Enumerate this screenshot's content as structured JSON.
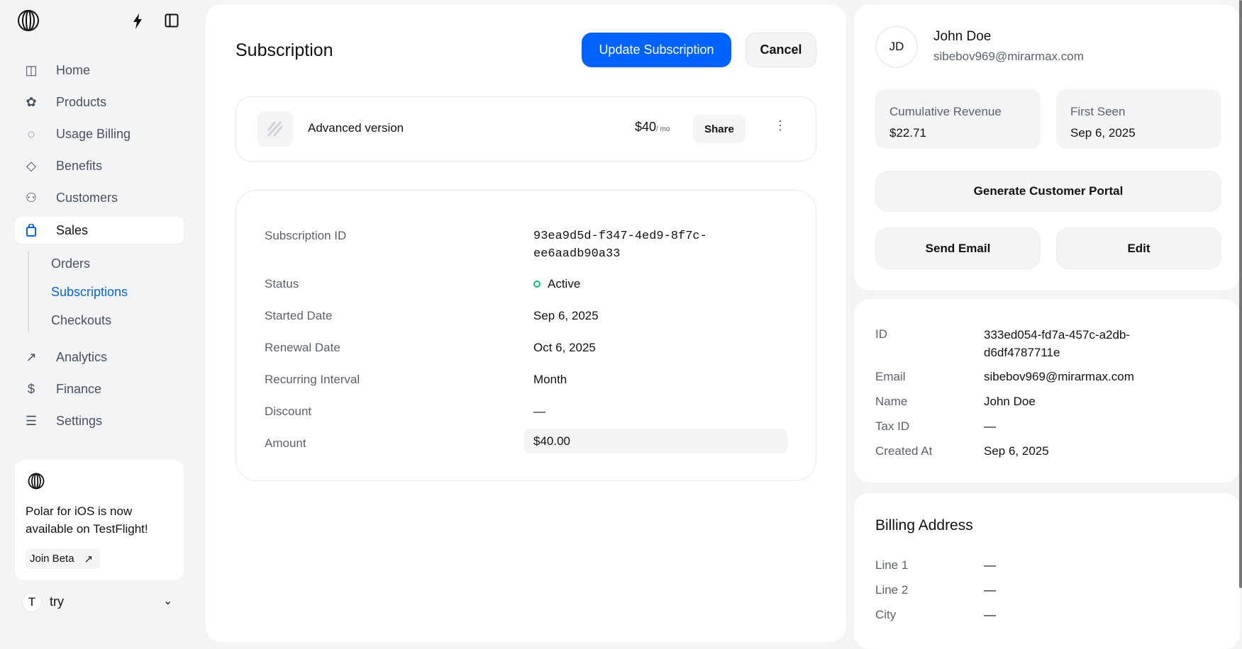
{
  "sidebar": {
    "items": [
      {
        "label": "Home",
        "icon": "home-grid-icon"
      },
      {
        "label": "Products",
        "icon": "products-icon"
      },
      {
        "label": "Usage Billing",
        "icon": "usage-billing-icon"
      },
      {
        "label": "Benefits",
        "icon": "diamond-icon"
      },
      {
        "label": "Customers",
        "icon": "customers-icon"
      },
      {
        "label": "Sales",
        "icon": "shopping-bag-icon",
        "active": true
      },
      {
        "label": "Analytics",
        "icon": "trending-icon"
      },
      {
        "label": "Finance",
        "icon": "dollar-icon"
      },
      {
        "label": "Settings",
        "icon": "sliders-icon"
      }
    ],
    "sales_sub": [
      {
        "label": "Orders"
      },
      {
        "label": "Subscriptions",
        "active": true
      },
      {
        "label": "Checkouts"
      }
    ],
    "promo": {
      "text": "Polar for iOS is now available on TestFlight!",
      "button": "Join Beta"
    },
    "org": {
      "initial": "T",
      "name": "try"
    }
  },
  "main": {
    "title": "Subscription",
    "update_button": "Update Subscription",
    "cancel_button": "Cancel",
    "product": {
      "name": "Advanced version",
      "price": "$40",
      "interval": "/ mo",
      "share": "Share"
    },
    "details": [
      {
        "label": "Subscription ID",
        "value": "93ea9d5d-f347-4ed9-8f7c-ee6aadb90a33"
      },
      {
        "label": "Status",
        "value": "Active"
      },
      {
        "label": "Started Date",
        "value": "Sep 6, 2025"
      },
      {
        "label": "Renewal Date",
        "value": "Oct 6, 2025"
      },
      {
        "label": "Recurring Interval",
        "value": "Month"
      },
      {
        "label": "Discount",
        "value": "—"
      },
      {
        "label": "Amount",
        "value": "$40.00"
      }
    ],
    "status_color": "#10b981"
  },
  "customer": {
    "initials": "JD",
    "name": "John Doe",
    "email": "sibebov969@mirarmax.com",
    "stats": [
      {
        "label": "Cumulative Revenue",
        "value": "$22.71"
      },
      {
        "label": "First Seen",
        "value": "Sep 6, 2025"
      }
    ],
    "portal_button": "Generate Customer Portal",
    "email_button": "Send Email",
    "edit_button": "Edit",
    "info": [
      {
        "label": "ID",
        "value": "333ed054-fd7a-457c-a2db-d6df4787711e"
      },
      {
        "label": "Email",
        "value": "sibebov969@mirarmax.com"
      },
      {
        "label": "Name",
        "value": "John Doe"
      },
      {
        "label": "Tax ID",
        "value": "—"
      },
      {
        "label": "Created At",
        "value": "Sep 6, 2025"
      }
    ],
    "billing": {
      "title": "Billing Address",
      "rows": [
        {
          "label": "Line 1",
          "value": "—"
        },
        {
          "label": "Line 2",
          "value": "—"
        },
        {
          "label": "City",
          "value": "—"
        }
      ]
    }
  },
  "colors": {
    "accent": "#0062ff"
  }
}
